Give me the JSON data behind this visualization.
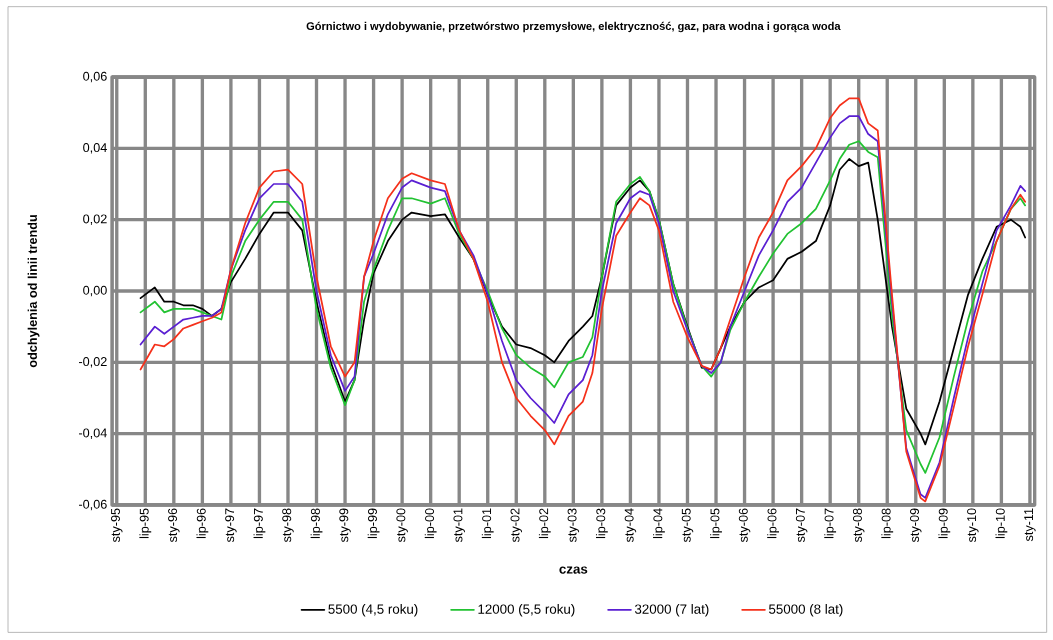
{
  "chart_data": {
    "type": "line",
    "title": "Górnictwo i wydobywanie, przetwórstwo przemysłowe, elektryczność, gaz, para wodna i gorąca woda",
    "xlabel": "czas",
    "ylabel": "odchylenia od linii trendu",
    "x": [
      "1995-06",
      "1995-09",
      "1995-11",
      "1996-01",
      "1996-03",
      "1996-05",
      "1996-07",
      "1996-09",
      "1996-11",
      "1997-01",
      "1997-04",
      "1997-07",
      "1997-10",
      "1998-01",
      "1998-04",
      "1998-07",
      "1998-10",
      "1999-01",
      "1999-03",
      "1999-05",
      "1999-07",
      "1999-10",
      "2000-01",
      "2000-03",
      "2000-07",
      "2000-10",
      "2001-01",
      "2001-04",
      "2001-07",
      "2001-10",
      "2002-01",
      "2002-04",
      "2002-07",
      "2002-09",
      "2002-12",
      "2003-03",
      "2003-05",
      "2003-07",
      "2003-10",
      "2004-01",
      "2004-03",
      "2004-05",
      "2004-07",
      "2004-10",
      "2005-01",
      "2005-04",
      "2005-06",
      "2005-08",
      "2005-10",
      "2006-01",
      "2006-04",
      "2006-07",
      "2006-10",
      "2007-01",
      "2007-04",
      "2007-07",
      "2007-09",
      "2007-11",
      "2008-01",
      "2008-03",
      "2008-05",
      "2008-08",
      "2008-11",
      "2009-02",
      "2009-03",
      "2009-06",
      "2009-09",
      "2009-12",
      "2010-03",
      "2010-06",
      "2010-09",
      "2010-11",
      "2010-12"
    ],
    "series": [
      {
        "name": "5500 (4,5 roku)",
        "color": "#000000",
        "values": [
          -0.002,
          0.001,
          -0.003,
          -0.003,
          -0.004,
          -0.004,
          -0.005,
          -0.007,
          -0.005,
          0.0025,
          0.009,
          0.016,
          0.022,
          0.022,
          0.017,
          -0.003,
          -0.02,
          -0.031,
          -0.025,
          -0.008,
          0.005,
          0.014,
          0.02,
          0.022,
          0.021,
          0.0215,
          0.015,
          0.009,
          -0.001,
          -0.01,
          -0.015,
          -0.016,
          -0.018,
          -0.02,
          -0.014,
          -0.01,
          -0.007,
          0.004,
          0.024,
          0.029,
          0.031,
          0.028,
          0.02,
          0.002,
          -0.01,
          -0.0215,
          -0.022,
          -0.016,
          -0.01,
          -0.003,
          0.001,
          0.003,
          0.009,
          0.011,
          0.014,
          0.024,
          0.034,
          0.037,
          0.035,
          0.036,
          0.02,
          -0.01,
          -0.033,
          -0.04,
          -0.043,
          -0.031,
          -0.016,
          -0.001,
          0.009,
          0.018,
          0.02,
          0.018,
          0.015
        ]
      },
      {
        "name": "12000 (5,5 roku)",
        "color": "#22c232",
        "values": [
          -0.006,
          -0.003,
          -0.006,
          -0.005,
          -0.005,
          -0.005,
          -0.006,
          -0.007,
          -0.008,
          0.004,
          0.014,
          0.02,
          0.025,
          0.025,
          0.02,
          -0.005,
          -0.0215,
          -0.032,
          -0.025,
          -0.003,
          0.006,
          0.017,
          0.026,
          0.026,
          0.0245,
          0.026,
          0.016,
          0.009,
          0.0,
          -0.0105,
          -0.018,
          -0.0215,
          -0.024,
          -0.027,
          -0.02,
          -0.0185,
          -0.013,
          0.004,
          0.025,
          0.03,
          0.032,
          0.028,
          0.02,
          0.002,
          -0.0105,
          -0.021,
          -0.024,
          -0.02,
          -0.011,
          -0.003,
          0.004,
          0.0105,
          0.016,
          0.019,
          0.023,
          0.031,
          0.037,
          0.041,
          0.042,
          0.039,
          0.0375,
          -0.007,
          -0.039,
          -0.0485,
          -0.051,
          -0.041,
          -0.024,
          -0.008,
          0.0055,
          0.014,
          0.023,
          0.026,
          0.024
        ]
      },
      {
        "name": "32000 (7 lat)",
        "color": "#5a1fd2",
        "values": [
          -0.015,
          -0.01,
          -0.012,
          -0.01,
          -0.008,
          -0.0075,
          -0.007,
          -0.007,
          -0.005,
          0.006,
          0.017,
          0.026,
          0.03,
          0.03,
          0.025,
          0.0,
          -0.018,
          -0.028,
          -0.024,
          0.004,
          0.0105,
          0.0215,
          0.029,
          0.031,
          0.029,
          0.028,
          0.017,
          0.01,
          -0.001,
          -0.014,
          -0.025,
          -0.03,
          -0.034,
          -0.037,
          -0.029,
          -0.025,
          -0.018,
          0.0,
          0.019,
          0.026,
          0.028,
          0.027,
          0.019,
          0.0,
          -0.011,
          -0.021,
          -0.023,
          -0.02,
          -0.01,
          0.0,
          0.01,
          0.017,
          0.025,
          0.029,
          0.036,
          0.043,
          0.047,
          0.049,
          0.049,
          0.044,
          0.042,
          -0.003,
          -0.044,
          -0.057,
          -0.058,
          -0.048,
          -0.03,
          -0.013,
          0.002,
          0.017,
          0.024,
          0.0295,
          0.028
        ]
      },
      {
        "name": "55000 (8 lat)",
        "color": "#f5301a",
        "values": [
          -0.022,
          -0.015,
          -0.0155,
          -0.0135,
          -0.0105,
          -0.0095,
          -0.0085,
          -0.0075,
          -0.006,
          0.006,
          0.019,
          0.029,
          0.0335,
          0.034,
          0.03,
          0.004,
          -0.0155,
          -0.024,
          -0.02,
          0.004,
          0.014,
          0.026,
          0.0315,
          0.033,
          0.031,
          0.03,
          0.017,
          0.009,
          -0.003,
          -0.02,
          -0.03,
          -0.035,
          -0.039,
          -0.043,
          -0.035,
          -0.031,
          -0.023,
          -0.005,
          0.0155,
          0.022,
          0.026,
          0.024,
          0.017,
          -0.003,
          -0.013,
          -0.021,
          -0.022,
          -0.016,
          -0.008,
          0.004,
          0.015,
          0.022,
          0.031,
          0.035,
          0.04,
          0.0485,
          0.052,
          0.054,
          0.054,
          0.047,
          0.045,
          -0.001,
          -0.045,
          -0.058,
          -0.059,
          -0.049,
          -0.0325,
          -0.0155,
          -0.001,
          0.014,
          0.023,
          0.027,
          0.025
        ]
      }
    ],
    "xlim": [
      "1994-12",
      "2011-02"
    ],
    "xticks": [
      {
        "value": "1995-01",
        "label": "sty-95"
      },
      {
        "value": "1995-07",
        "label": "lip-95"
      },
      {
        "value": "1996-01",
        "label": "sty-96"
      },
      {
        "value": "1996-07",
        "label": "lip-96"
      },
      {
        "value": "1997-01",
        "label": "sty-97"
      },
      {
        "value": "1997-07",
        "label": "lip-97"
      },
      {
        "value": "1998-01",
        "label": "sty-98"
      },
      {
        "value": "1998-07",
        "label": "lip-98"
      },
      {
        "value": "1999-01",
        "label": "sty-99"
      },
      {
        "value": "1999-07",
        "label": "lip-99"
      },
      {
        "value": "2000-01",
        "label": "sty-00"
      },
      {
        "value": "2000-07",
        "label": "lip-00"
      },
      {
        "value": "2001-01",
        "label": "sty-01"
      },
      {
        "value": "2001-07",
        "label": "lip-01"
      },
      {
        "value": "2002-01",
        "label": "sty-02"
      },
      {
        "value": "2002-07",
        "label": "lip-02"
      },
      {
        "value": "2003-01",
        "label": "sty-03"
      },
      {
        "value": "2003-07",
        "label": "lip-03"
      },
      {
        "value": "2004-01",
        "label": "sty-04"
      },
      {
        "value": "2004-07",
        "label": "lip-04"
      },
      {
        "value": "2005-01",
        "label": "sty-05"
      },
      {
        "value": "2005-07",
        "label": "lip-05"
      },
      {
        "value": "2006-01",
        "label": "sty-06"
      },
      {
        "value": "2006-07",
        "label": "lip-06"
      },
      {
        "value": "2007-01",
        "label": "sty-07"
      },
      {
        "value": "2007-07",
        "label": "lip-07"
      },
      {
        "value": "2008-01",
        "label": "sty-08"
      },
      {
        "value": "2008-07",
        "label": "lip-08"
      },
      {
        "value": "2009-01",
        "label": "sty-09"
      },
      {
        "value": "2009-07",
        "label": "lip-09"
      },
      {
        "value": "2010-01",
        "label": "sty-10"
      },
      {
        "value": "2010-07",
        "label": "lip-10"
      },
      {
        "value": "2011-01",
        "label": "sty-11"
      }
    ],
    "ylim": [
      -0.06,
      0.06
    ],
    "yticks": [
      {
        "value": -0.06,
        "label": "-0,06"
      },
      {
        "value": -0.04,
        "label": "-0,04"
      },
      {
        "value": -0.02,
        "label": "-0,02"
      },
      {
        "value": 0,
        "label": "0,00"
      },
      {
        "value": 0.02,
        "label": "0,02"
      },
      {
        "value": 0.04,
        "label": "0,04"
      },
      {
        "value": 0.06,
        "label": "0,06"
      }
    ],
    "grid": true,
    "legend": "bottom"
  }
}
